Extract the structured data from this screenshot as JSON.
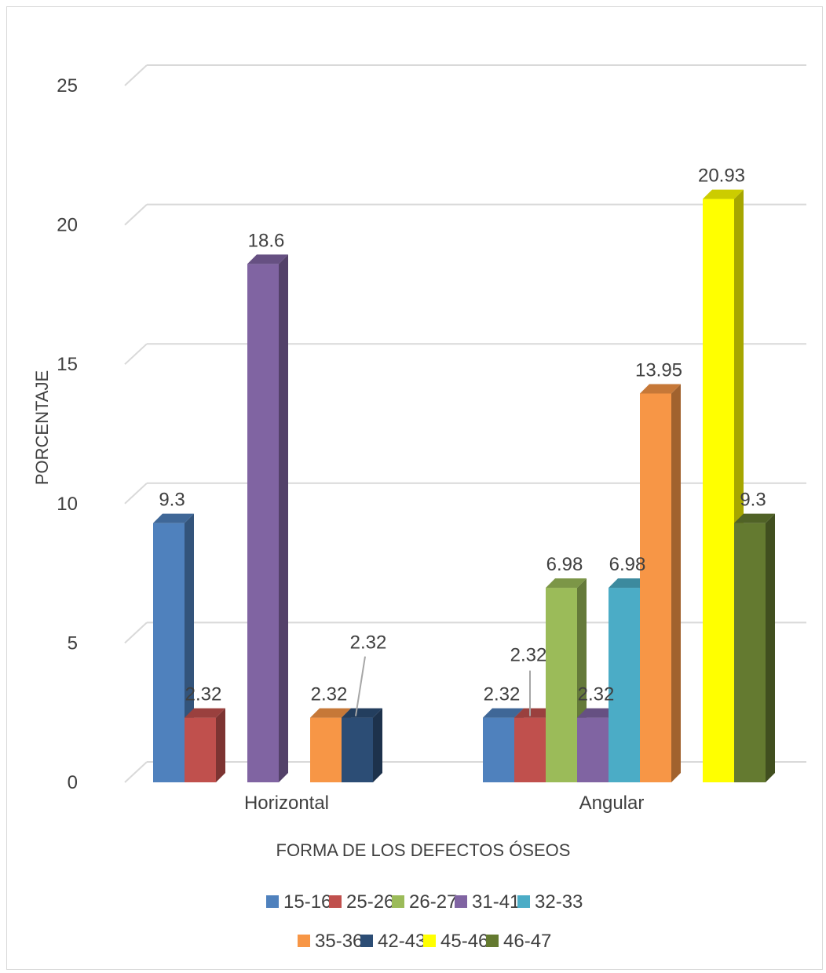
{
  "chart_data": {
    "type": "bar",
    "style": "3d-clustered-column",
    "categories": [
      "Horizontal",
      "Angular"
    ],
    "xlabel": "FORMA DE LOS DEFECTOS ÓSEOS",
    "ylabel": "PORCENTAJE",
    "ylim": [
      0,
      25
    ],
    "yticks": [
      "0",
      "5",
      "10",
      "15",
      "20",
      "25"
    ],
    "grid": true,
    "legend_position": "bottom",
    "series": [
      {
        "name": "15-16",
        "color": "#4f81bd",
        "values": [
          9.3,
          2.32
        ],
        "labels": [
          "9.3",
          "2.32"
        ]
      },
      {
        "name": "25-26",
        "color": "#c0504d",
        "values": [
          2.32,
          2.32
        ],
        "labels": [
          "2.32",
          "2.32"
        ]
      },
      {
        "name": "26-27",
        "color": "#9bbb59",
        "values": [
          0,
          6.98
        ],
        "labels": [
          "",
          "6.98"
        ]
      },
      {
        "name": "31-41",
        "color": "#8064a2",
        "values": [
          18.6,
          2.32
        ],
        "labels": [
          "18.6",
          "2.32"
        ]
      },
      {
        "name": "32-33",
        "color": "#4bacc6",
        "values": [
          0,
          6.98
        ],
        "labels": [
          "",
          "6.98"
        ]
      },
      {
        "name": "35-36",
        "color": "#f79646",
        "values": [
          2.32,
          13.95
        ],
        "labels": [
          "2.32",
          "13.95"
        ]
      },
      {
        "name": "42-43",
        "color": "#2c4d75",
        "values": [
          2.32,
          0
        ],
        "labels": [
          "2.32",
          ""
        ]
      },
      {
        "name": "45-46",
        "color": "#ffff00",
        "values": [
          0,
          20.93
        ],
        "labels": [
          "",
          "20.93"
        ]
      },
      {
        "name": "46-47",
        "color": "#647a30",
        "values": [
          0,
          9.3
        ],
        "labels": [
          "",
          "9.3"
        ]
      }
    ]
  }
}
